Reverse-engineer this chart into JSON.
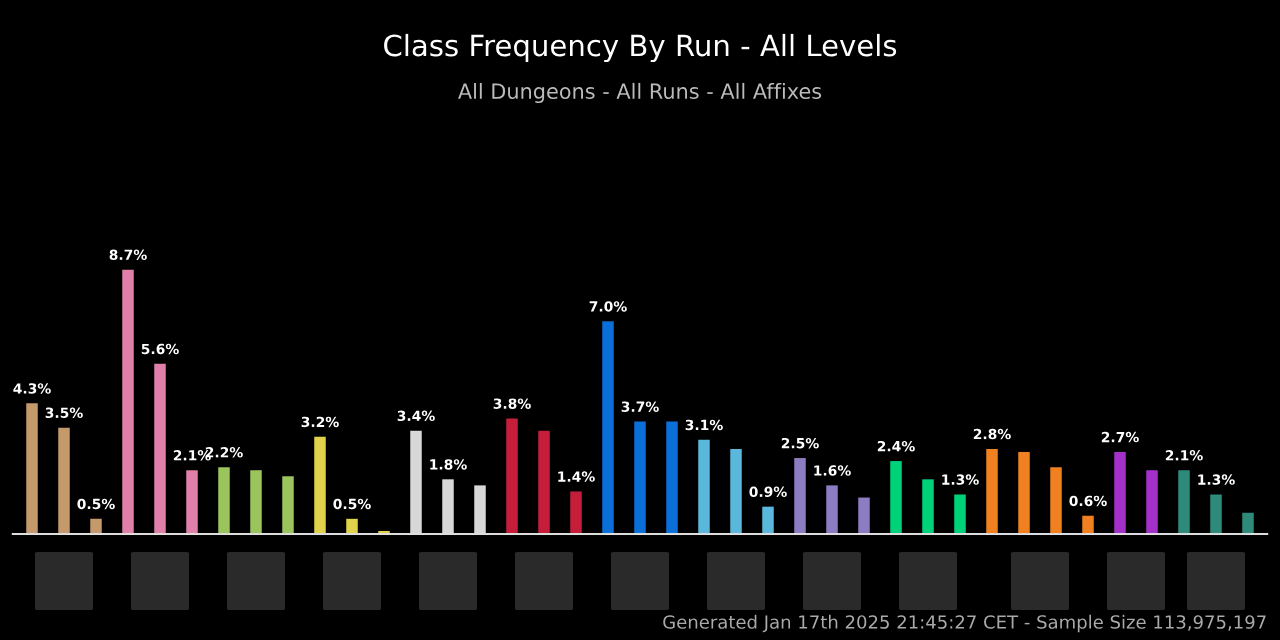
{
  "chart_data": {
    "type": "bar",
    "title": "Class Frequency By Run - All Levels",
    "subtitle": "All Dungeons - All Runs - All Affixes",
    "annotations": [
      "Generated Jan 17th 2025 21:45:27 CET - Sample Size 113,975,197"
    ],
    "categories": [
      null,
      null,
      null,
      null,
      null,
      null,
      null,
      null,
      null,
      null,
      null,
      null,
      null,
      null,
      null,
      null,
      null,
      null,
      null,
      null,
      null,
      null,
      null,
      null,
      null,
      null,
      null,
      null,
      null,
      null,
      null,
      null,
      null,
      null,
      null,
      null,
      null,
      null,
      null
    ],
    "colors": [
      "#c49a6c",
      "#c49a6c",
      "#c49a6c",
      "#e07fa8",
      "#e07fa8",
      "#e07fa8",
      "#9bc45c",
      "#9bc45c",
      "#9bc45c",
      "#e0d24a",
      "#e0d24a",
      "#e0d24a",
      "#d8d8d8",
      "#d8d8d8",
      "#d8d8d8",
      "#c41e3a",
      "#c41e3a",
      "#c41e3a",
      "#0a6fd8",
      "#0a6fd8",
      "#0a6fd8",
      "#5ab8dc",
      "#5ab8dc",
      "#5ab8dc",
      "#8e7cc3",
      "#8e7cc3",
      "#8e7cc3",
      "#00d27a",
      "#00d27a",
      "#00d27a",
      "#f08020",
      "#f08020",
      "#f08020",
      "#f08020",
      "#a330c9",
      "#a330c9",
      "#2e8b7a",
      "#2e8b7a",
      "#2e8b7a"
    ],
    "values": [
      4.3,
      3.5,
      0.5,
      8.7,
      5.6,
      2.1,
      2.2,
      2.1,
      1.9,
      3.2,
      0.5,
      0.1,
      3.4,
      1.8,
      1.6,
      3.8,
      3.4,
      1.4,
      7.0,
      3.7,
      3.7,
      3.1,
      2.8,
      0.9,
      2.5,
      1.6,
      1.2,
      2.4,
      1.8,
      1.3,
      2.8,
      2.7,
      2.2,
      0.6,
      2.7,
      2.1,
      2.1,
      1.3,
      0.7
    ],
    "value_labels": [
      "4.3%",
      "3.5%",
      "0.5%",
      "8.7%",
      "5.6%",
      "2.1%",
      "2.2%",
      null,
      null,
      "3.2%",
      "0.5%",
      null,
      "3.4%",
      "1.8%",
      null,
      "3.8%",
      null,
      "1.4%",
      "7.0%",
      "3.7%",
      null,
      "3.1%",
      null,
      "0.9%",
      "2.5%",
      "1.6%",
      null,
      "2.4%",
      null,
      "1.3%",
      "2.8%",
      null,
      null,
      "0.6%",
      "2.7%",
      null,
      "2.1%",
      "1.3%",
      null
    ],
    "grid": false,
    "legend": false
  }
}
